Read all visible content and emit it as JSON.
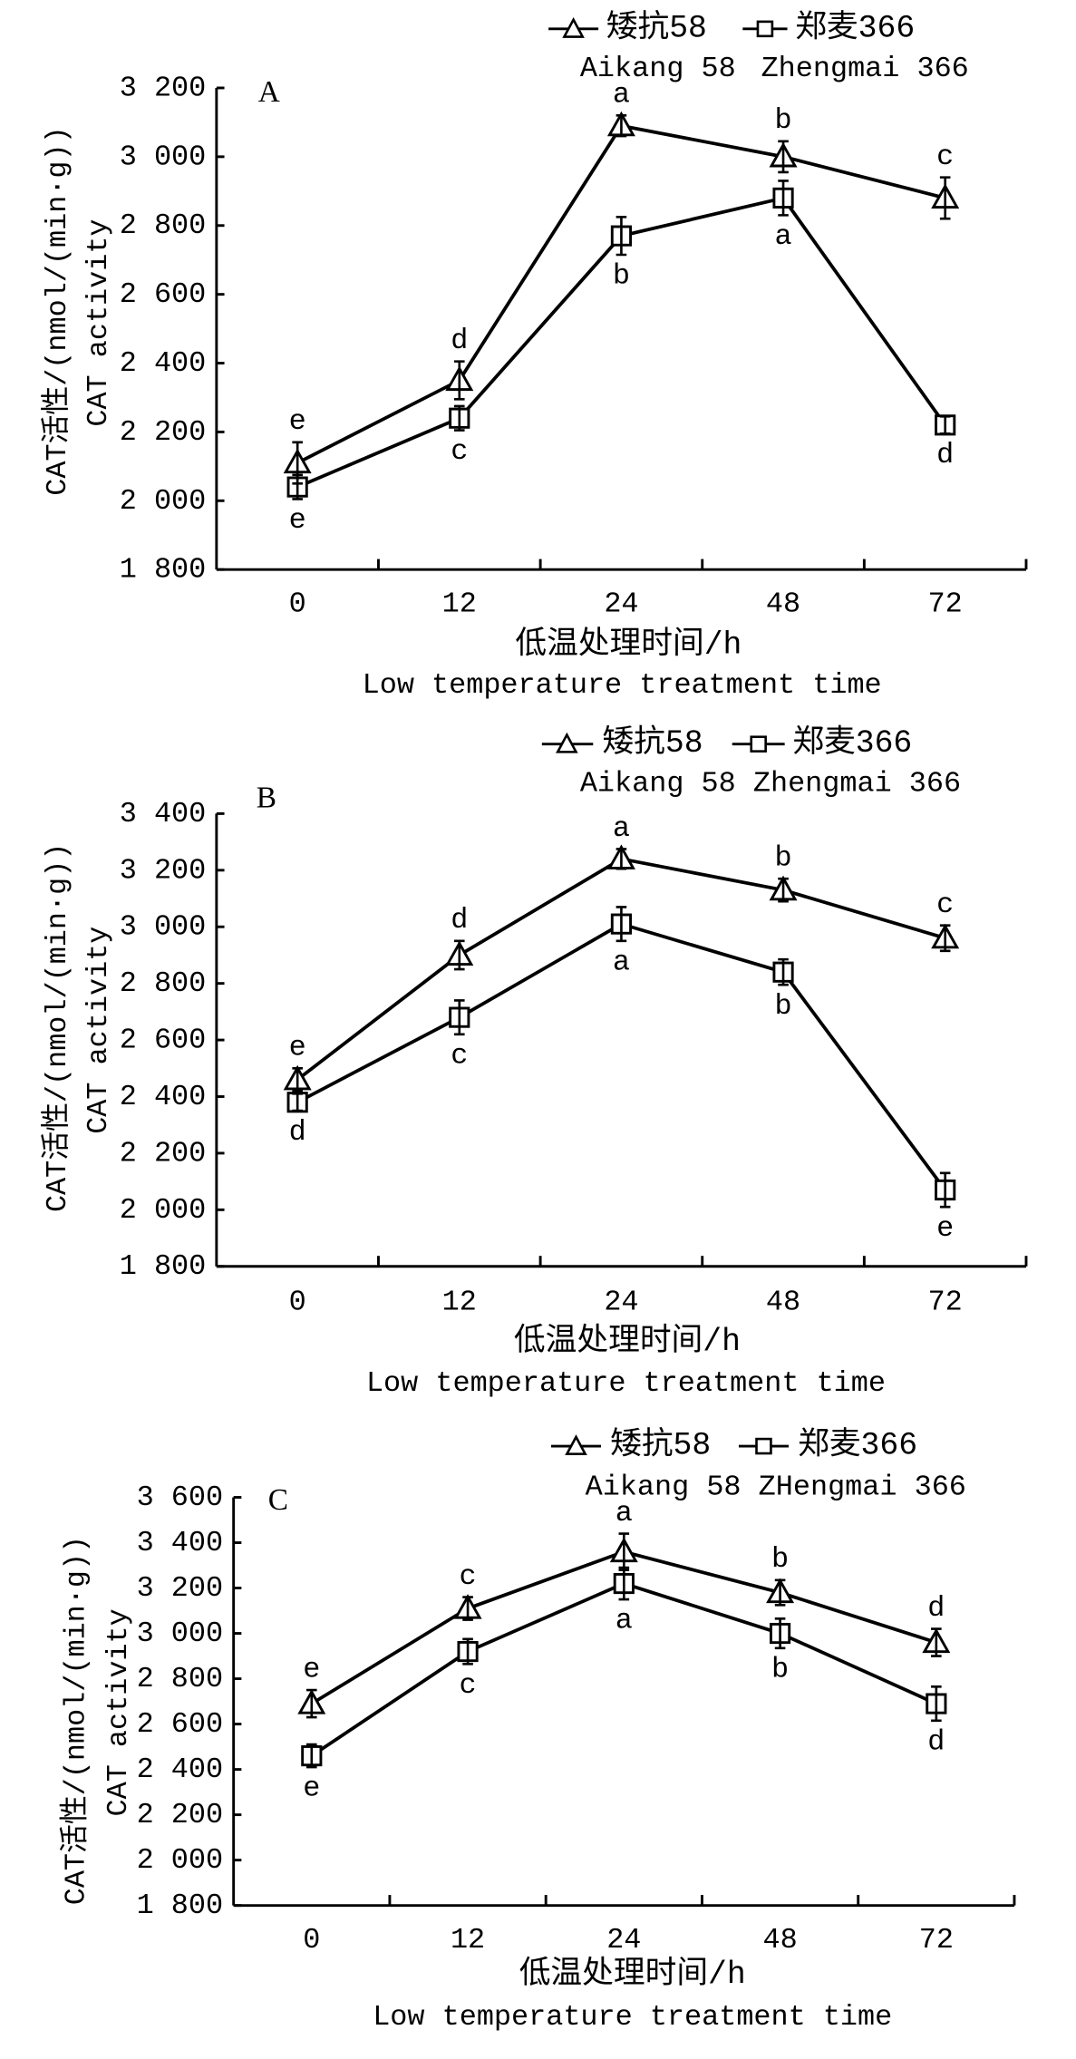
{
  "chart_data": [
    {
      "type": "line",
      "panel_label": "A",
      "categories": [
        "0",
        "12",
        "24",
        "48",
        "72"
      ],
      "xlabel": "低温处理时间/h",
      "xlabel_en": "Low temperature treatment time",
      "ylabel": "CAT活性/(nmol/(min·g))",
      "ylabel_en": "CAT activity",
      "ylim": [
        1800,
        3200
      ],
      "yticks": [
        1800,
        2000,
        2200,
        2400,
        2600,
        2800,
        3000,
        3200
      ],
      "ytick_labels": [
        "1 800",
        "2 000",
        "2 200",
        "2 400",
        "2 600",
        "2 800",
        "3 000",
        "3 200"
      ],
      "grid": false,
      "legend_position": "top-right",
      "series": [
        {
          "name": "矮抗58",
          "name_en": "Aikang 58",
          "marker": "triangle",
          "color": "#000000",
          "values": [
            2110,
            2350,
            3090,
            3000,
            2880
          ],
          "errors": [
            60,
            55,
            30,
            45,
            60
          ],
          "labels": [
            "e",
            "d",
            "a",
            "b",
            "c"
          ]
        },
        {
          "name": "郑麦366",
          "name_en": "Zhengmai 366",
          "marker": "square",
          "color": "#000000",
          "values": [
            2040,
            2240,
            2770,
            2880,
            2220
          ],
          "errors": [
            35,
            35,
            55,
            50,
            25
          ],
          "labels": [
            "e",
            "c",
            "b",
            "a",
            "d"
          ]
        }
      ]
    },
    {
      "type": "line",
      "panel_label": "B",
      "categories": [
        "0",
        "12",
        "24",
        "48",
        "72"
      ],
      "xlabel": "低温处理时间/h",
      "xlabel_en": "Low temperature treatment time",
      "ylabel": "CAT活性/(nmol/(min·g))",
      "ylabel_en": "CAT activity",
      "ylim": [
        1800,
        3400
      ],
      "yticks": [
        1800,
        2000,
        2200,
        2400,
        2600,
        2800,
        3000,
        3200,
        3400
      ],
      "ytick_labels": [
        "1 800",
        "2 000",
        "2 200",
        "2 400",
        "2 600",
        "2 800",
        "3 000",
        "3 200",
        "3 400"
      ],
      "grid": false,
      "legend_position": "top-right",
      "series": [
        {
          "name": "矮抗58",
          "name_en": "Aikang 58",
          "marker": "triangle",
          "color": "#000000",
          "values": [
            2460,
            2900,
            3240,
            3130,
            2960
          ],
          "errors": [
            40,
            50,
            35,
            40,
            45
          ],
          "labels": [
            "e",
            "d",
            "a",
            "b",
            "c"
          ]
        },
        {
          "name": "郑麦366",
          "name_en": "Zhengmai 366",
          "marker": "square",
          "color": "#000000",
          "values": [
            2380,
            2680,
            3010,
            2840,
            2070
          ],
          "errors": [
            30,
            60,
            60,
            45,
            60
          ],
          "labels": [
            "d",
            "c",
            "a",
            "b",
            "e"
          ]
        }
      ]
    },
    {
      "type": "line",
      "panel_label": "C",
      "categories": [
        "0",
        "12",
        "24",
        "48",
        "72"
      ],
      "xlabel": "低温处理时间/h",
      "xlabel_en": "Low temperature treatment time",
      "ylabel": "CAT活性/(nmol/(min·g))",
      "ylabel_en": "CAT activity",
      "ylim": [
        1800,
        3600
      ],
      "yticks": [
        1800,
        2000,
        2200,
        2400,
        2600,
        2800,
        3000,
        3200,
        3400,
        3600
      ],
      "ytick_labels": [
        "1 800",
        "2 000",
        "2 200",
        "2 400",
        "2 600",
        "2 800",
        "3 000",
        "3 200",
        "3 400",
        "3 600"
      ],
      "grid": false,
      "legend_position": "top-right",
      "series": [
        {
          "name": "矮抗58",
          "name_en": "Aikang 58",
          "marker": "triangle",
          "color": "#000000",
          "values": [
            2690,
            3110,
            3360,
            3180,
            2960
          ],
          "errors": [
            60,
            50,
            80,
            55,
            60
          ],
          "labels": [
            "e",
            "c",
            "a",
            "b",
            "d"
          ]
        },
        {
          "name": "郑麦366",
          "name_en": "ZHengmai 366",
          "marker": "square",
          "color": "#000000",
          "values": [
            2460,
            2920,
            3220,
            3000,
            2690
          ],
          "errors": [
            50,
            55,
            70,
            65,
            75
          ],
          "labels": [
            "e",
            "c",
            "a",
            "b",
            "d"
          ]
        }
      ]
    }
  ]
}
